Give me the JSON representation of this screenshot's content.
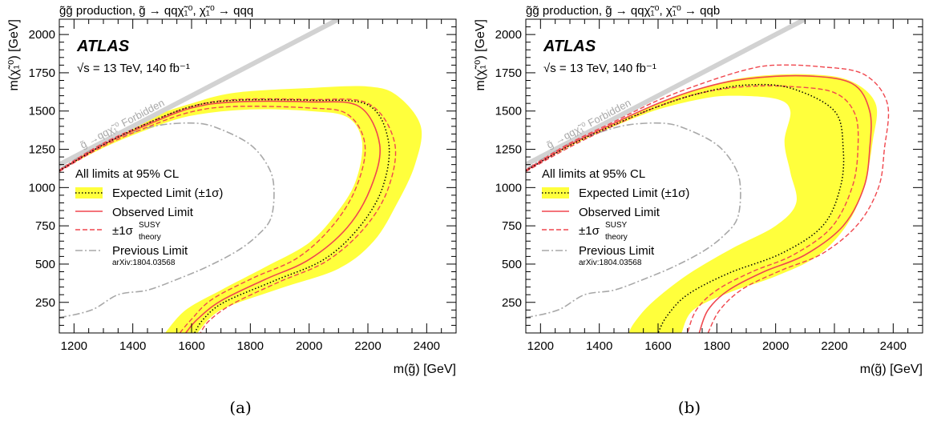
{
  "chart_data": [
    {
      "type": "line",
      "title": "g̃g̃ production, g̃ → qqχ̃₁⁰, χ̃₁⁰ → qqq",
      "xlabel": "m(g̃) [GeV]",
      "ylabel": "m(χ̃₁⁰) [GeV]",
      "xlim": [
        1150,
        2500
      ],
      "ylim": [
        50,
        2100
      ],
      "x_ticks": [
        1200,
        1400,
        1600,
        1800,
        2000,
        2200,
        2400
      ],
      "y_ticks": [
        250,
        500,
        750,
        1000,
        1250,
        1500,
        1750,
        2000
      ],
      "atlas_label": "ATLAS",
      "energy_label": "√s = 13 TeV, 140 fb⁻¹",
      "forbidden_label": "g̃ →qqχ̃₁⁰ Forbidden",
      "legend_header": "All limits at 95% CL",
      "legend": {
        "expected": "Expected Limit (±1σ)",
        "observed": "Observed Limit",
        "theory": "±1σ",
        "theory_sup": "SUSY",
        "theory_sub": "theory",
        "previous": "Previous Limit",
        "previous_ref": "arXiv:1804.03568"
      },
      "legend_position": "left",
      "sub_label": "(a)",
      "series": {
        "band_upper": [
          [
            1150,
            1110
          ],
          [
            1300,
            1300
          ],
          [
            1450,
            1450
          ],
          [
            1600,
            1550
          ],
          [
            1750,
            1620
          ],
          [
            2000,
            1650
          ],
          [
            2200,
            1660
          ],
          [
            2300,
            1600
          ],
          [
            2380,
            1400
          ],
          [
            2360,
            1150
          ],
          [
            2300,
            900
          ],
          [
            2220,
            650
          ],
          [
            2100,
            470
          ],
          [
            1900,
            340
          ],
          [
            1700,
            200
          ],
          [
            1620,
            50
          ]
        ],
        "band_lower": [
          [
            1150,
            1110
          ],
          [
            1300,
            1260
          ],
          [
            1450,
            1380
          ],
          [
            1600,
            1470
          ],
          [
            1800,
            1510
          ],
          [
            2000,
            1500
          ],
          [
            2130,
            1460
          ],
          [
            2180,
            1300
          ],
          [
            2160,
            1050
          ],
          [
            2100,
            850
          ],
          [
            2000,
            640
          ],
          [
            1850,
            480
          ],
          [
            1700,
            330
          ],
          [
            1580,
            200
          ],
          [
            1510,
            50
          ]
        ],
        "expected": [
          [
            1150,
            1110
          ],
          [
            1300,
            1280
          ],
          [
            1450,
            1420
          ],
          [
            1600,
            1530
          ],
          [
            1750,
            1570
          ],
          [
            2000,
            1570
          ],
          [
            2200,
            1540
          ],
          [
            2270,
            1300
          ],
          [
            2250,
            1000
          ],
          [
            2170,
            740
          ],
          [
            2050,
            530
          ],
          [
            1880,
            390
          ],
          [
            1710,
            250
          ],
          [
            1640,
            140
          ],
          [
            1610,
            50
          ]
        ],
        "observed": [
          [
            1150,
            1110
          ],
          [
            1300,
            1280
          ],
          [
            1450,
            1410
          ],
          [
            1600,
            1520
          ],
          [
            1750,
            1560
          ],
          [
            2000,
            1560
          ],
          [
            2170,
            1530
          ],
          [
            2240,
            1280
          ],
          [
            2210,
            1000
          ],
          [
            2130,
            740
          ],
          [
            2000,
            530
          ],
          [
            1850,
            400
          ],
          [
            1700,
            260
          ],
          [
            1620,
            140
          ],
          [
            1580,
            50
          ]
        ],
        "theory_upper": [
          [
            1150,
            1115
          ],
          [
            1300,
            1290
          ],
          [
            1450,
            1420
          ],
          [
            1600,
            1530
          ],
          [
            1750,
            1575
          ],
          [
            2000,
            1575
          ],
          [
            2200,
            1550
          ],
          [
            2290,
            1300
          ],
          [
            2270,
            1000
          ],
          [
            2190,
            740
          ],
          [
            2060,
            520
          ],
          [
            1900,
            385
          ],
          [
            1740,
            240
          ],
          [
            1660,
            130
          ],
          [
            1630,
            50
          ]
        ],
        "theory_lower": [
          [
            1150,
            1105
          ],
          [
            1300,
            1270
          ],
          [
            1450,
            1395
          ],
          [
            1600,
            1495
          ],
          [
            1750,
            1530
          ],
          [
            2000,
            1520
          ],
          [
            2130,
            1480
          ],
          [
            2190,
            1280
          ],
          [
            2160,
            1000
          ],
          [
            2080,
            750
          ],
          [
            1960,
            540
          ],
          [
            1810,
            410
          ],
          [
            1670,
            270
          ],
          [
            1600,
            140
          ],
          [
            1560,
            50
          ]
        ],
        "previous": [
          [
            1150,
            150
          ],
          [
            1260,
            200
          ],
          [
            1350,
            300
          ],
          [
            1450,
            330
          ],
          [
            1550,
            400
          ],
          [
            1650,
            480
          ],
          [
            1750,
            580
          ],
          [
            1820,
            680
          ],
          [
            1870,
            800
          ],
          [
            1880,
            1000
          ],
          [
            1860,
            1140
          ],
          [
            1800,
            1280
          ],
          [
            1700,
            1380
          ],
          [
            1620,
            1420
          ],
          [
            1500,
            1410
          ],
          [
            1400,
            1360
          ],
          [
            1300,
            1290
          ],
          [
            1150,
            1120
          ]
        ],
        "forbidden_line": [
          [
            1150,
            1150
          ],
          [
            2100,
            2100
          ]
        ]
      }
    },
    {
      "type": "line",
      "title": "g̃g̃ production, g̃ → qqχ̃₁⁰, χ̃₁⁰ → qqb",
      "xlabel": "m(g̃) [GeV]",
      "ylabel": "m(χ̃₁⁰) [GeV]",
      "xlim": [
        1150,
        2500
      ],
      "ylim": [
        50,
        2100
      ],
      "x_ticks": [
        1200,
        1400,
        1600,
        1800,
        2000,
        2200,
        2400
      ],
      "y_ticks": [
        250,
        500,
        750,
        1000,
        1250,
        1500,
        1750,
        2000
      ],
      "atlas_label": "ATLAS",
      "energy_label": "√s = 13 TeV, 140 fb⁻¹",
      "forbidden_label": "g̃ →qqχ̃₁⁰ Forbidden",
      "legend_header": "All limits at 95% CL",
      "legend": {
        "expected": "Expected Limit (±1σ)",
        "observed": "Observed Limit",
        "theory": "±1σ",
        "theory_sup": "SUSY",
        "theory_sub": "theory",
        "previous": "Previous Limit",
        "previous_ref": "arXiv:1804.03568"
      },
      "legend_position": "left",
      "sub_label": "(b)",
      "series": {
        "band_upper": [
          [
            1150,
            1110
          ],
          [
            1300,
            1280
          ],
          [
            1450,
            1420
          ],
          [
            1600,
            1550
          ],
          [
            1750,
            1650
          ],
          [
            1900,
            1720
          ],
          [
            2100,
            1740
          ],
          [
            2250,
            1700
          ],
          [
            2340,
            1550
          ],
          [
            2330,
            1300
          ],
          [
            2300,
            1000
          ],
          [
            2240,
            750
          ],
          [
            2140,
            550
          ],
          [
            2000,
            420
          ],
          [
            1850,
            320
          ],
          [
            1720,
            200
          ],
          [
            1680,
            50
          ]
        ],
        "band_lower": [
          [
            1150,
            1110
          ],
          [
            1300,
            1270
          ],
          [
            1450,
            1400
          ],
          [
            1600,
            1510
          ],
          [
            1750,
            1580
          ],
          [
            1850,
            1600
          ],
          [
            2000,
            1580
          ],
          [
            2050,
            1500
          ],
          [
            2030,
            1300
          ],
          [
            2050,
            1100
          ],
          [
            2070,
            900
          ],
          [
            2000,
            750
          ],
          [
            1850,
            600
          ],
          [
            1700,
            430
          ],
          [
            1580,
            250
          ],
          [
            1520,
            120
          ],
          [
            1500,
            50
          ]
        ],
        "expected": [
          [
            1150,
            1110
          ],
          [
            1300,
            1275
          ],
          [
            1450,
            1410
          ],
          [
            1600,
            1530
          ],
          [
            1750,
            1620
          ],
          [
            1900,
            1670
          ],
          [
            2050,
            1650
          ],
          [
            2200,
            1500
          ],
          [
            2230,
            1250
          ],
          [
            2220,
            1000
          ],
          [
            2160,
            750
          ],
          [
            2020,
            570
          ],
          [
            1840,
            440
          ],
          [
            1700,
            300
          ],
          [
            1630,
            160
          ],
          [
            1600,
            50
          ]
        ],
        "observed": [
          [
            1150,
            1110
          ],
          [
            1300,
            1280
          ],
          [
            1450,
            1420
          ],
          [
            1600,
            1550
          ],
          [
            1750,
            1650
          ],
          [
            1900,
            1710
          ],
          [
            2100,
            1730
          ],
          [
            2260,
            1680
          ],
          [
            2320,
            1500
          ],
          [
            2320,
            1250
          ],
          [
            2300,
            1000
          ],
          [
            2230,
            750
          ],
          [
            2100,
            560
          ],
          [
            1960,
            450
          ],
          [
            1840,
            330
          ],
          [
            1770,
            200
          ],
          [
            1740,
            50
          ]
        ],
        "theory_upper": [
          [
            1150,
            1115
          ],
          [
            1300,
            1290
          ],
          [
            1450,
            1430
          ],
          [
            1600,
            1570
          ],
          [
            1750,
            1680
          ],
          [
            1900,
            1770
          ],
          [
            2000,
            1800
          ],
          [
            2150,
            1790
          ],
          [
            2300,
            1740
          ],
          [
            2380,
            1550
          ],
          [
            2370,
            1250
          ],
          [
            2350,
            1000
          ],
          [
            2280,
            760
          ],
          [
            2160,
            570
          ],
          [
            2020,
            460
          ],
          [
            1890,
            340
          ],
          [
            1810,
            200
          ],
          [
            1770,
            50
          ]
        ],
        "theory_lower": [
          [
            1150,
            1105
          ],
          [
            1300,
            1265
          ],
          [
            1450,
            1405
          ],
          [
            1600,
            1530
          ],
          [
            1750,
            1620
          ],
          [
            1900,
            1660
          ],
          [
            2050,
            1660
          ],
          [
            2200,
            1620
          ],
          [
            2270,
            1480
          ],
          [
            2280,
            1250
          ],
          [
            2260,
            1000
          ],
          [
            2190,
            740
          ],
          [
            2060,
            560
          ],
          [
            1920,
            450
          ],
          [
            1800,
            330
          ],
          [
            1730,
            200
          ],
          [
            1700,
            50
          ]
        ],
        "previous": [
          [
            1150,
            150
          ],
          [
            1260,
            200
          ],
          [
            1350,
            300
          ],
          [
            1450,
            330
          ],
          [
            1550,
            400
          ],
          [
            1650,
            480
          ],
          [
            1750,
            580
          ],
          [
            1820,
            680
          ],
          [
            1870,
            800
          ],
          [
            1880,
            1000
          ],
          [
            1860,
            1140
          ],
          [
            1800,
            1280
          ],
          [
            1700,
            1380
          ],
          [
            1620,
            1420
          ],
          [
            1500,
            1410
          ],
          [
            1400,
            1360
          ],
          [
            1300,
            1290
          ],
          [
            1150,
            1120
          ]
        ],
        "forbidden_line": [
          [
            1150,
            1150
          ],
          [
            2100,
            2100
          ]
        ]
      }
    }
  ]
}
